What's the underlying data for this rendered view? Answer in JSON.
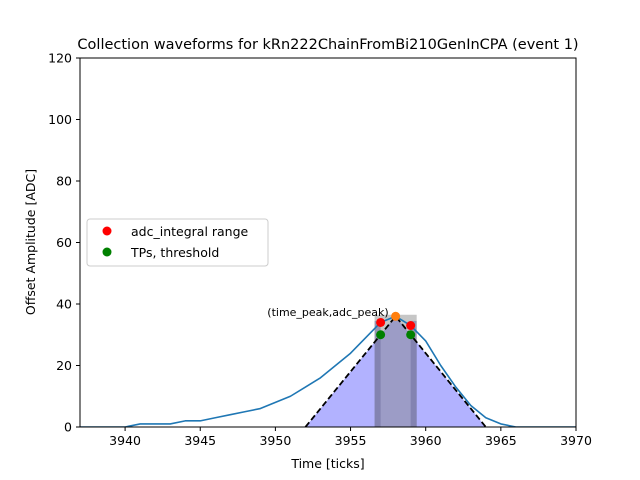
{
  "chart_data": {
    "type": "line",
    "title": "Collection waveforms for kRn222ChainFromBi210GenInCPA (event 1)",
    "xlabel": "Time [ticks]",
    "ylabel": "Offset Amplitude [ADC]",
    "xlim": [
      3937,
      3970
    ],
    "ylim": [
      0,
      120
    ],
    "xticks": [
      3940,
      3945,
      3950,
      3955,
      3960,
      3965,
      3970
    ],
    "yticks": [
      0,
      20,
      40,
      60,
      80,
      100,
      120
    ],
    "grid": false,
    "legend_placement": "center-left",
    "waveform": {
      "color": "#1f77b4",
      "points": [
        [
          3937,
          0
        ],
        [
          3938,
          0
        ],
        [
          3939,
          0
        ],
        [
          3940,
          0
        ],
        [
          3941,
          1
        ],
        [
          3942,
          1
        ],
        [
          3943,
          1
        ],
        [
          3944,
          2
        ],
        [
          3945,
          2
        ],
        [
          3946,
          3
        ],
        [
          3947,
          4
        ],
        [
          3948,
          5
        ],
        [
          3949,
          6
        ],
        [
          3950,
          8
        ],
        [
          3951,
          10
        ],
        [
          3952,
          13
        ],
        [
          3953,
          16
        ],
        [
          3954,
          20
        ],
        [
          3955,
          24
        ],
        [
          3956,
          29
        ],
        [
          3957,
          34
        ],
        [
          3958,
          36
        ],
        [
          3959,
          33
        ],
        [
          3960,
          28
        ],
        [
          3961,
          20
        ],
        [
          3962,
          13
        ],
        [
          3963,
          7
        ],
        [
          3964,
          3
        ],
        [
          3965,
          1
        ],
        [
          3966,
          0
        ],
        [
          3967,
          0
        ],
        [
          3968,
          0
        ],
        [
          3969,
          0
        ],
        [
          3970,
          0
        ]
      ]
    },
    "triangle": {
      "color": "#0000ff",
      "points": [
        [
          3952,
          0
        ],
        [
          3958,
          36
        ],
        [
          3964,
          0
        ]
      ]
    },
    "grey_band": {
      "x0": 3956.6,
      "x1": 3959.4,
      "color": "#808080"
    },
    "edge_bands": [
      {
        "x0": 3956.6,
        "x1": 3957.0
      },
      {
        "x0": 3959.0,
        "x1": 3959.4
      }
    ],
    "peak_point": {
      "x": 3958,
      "y": 36,
      "color": "#ff7f0e"
    },
    "integral_points": {
      "color": "#ff0000",
      "points": [
        [
          3957,
          34
        ],
        [
          3959,
          33
        ]
      ]
    },
    "threshold_points": {
      "color": "#008000",
      "points": [
        [
          3957,
          30
        ],
        [
          3959,
          30
        ]
      ]
    },
    "annotation": {
      "text": "(time_peak,adc_peak)",
      "x": 3953.5,
      "y": 37
    },
    "legend": [
      {
        "label": "adc_integral range",
        "color": "#ff0000"
      },
      {
        "label": "TPs, threshold",
        "color": "#008000"
      }
    ]
  }
}
